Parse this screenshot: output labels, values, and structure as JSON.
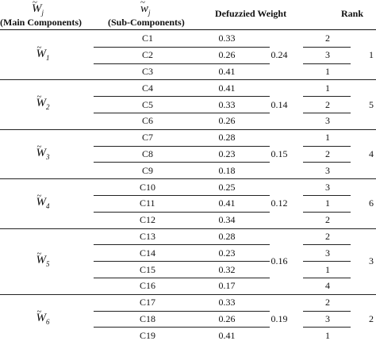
{
  "headers": {
    "main_symbol": "W",
    "main_sub": "j",
    "main_label": "(Main Components)",
    "sub_symbol": "w",
    "sub_sub": "j",
    "sub_label": "(Sub-Components)",
    "weight": "Defuzzied Weight",
    "rank": "Rank"
  },
  "groups": [
    {
      "main": "W",
      "index": "1",
      "main_weight": "0.24",
      "main_rank": "1",
      "rows": [
        {
          "sub": "C1",
          "weight": "0.33",
          "rank": "2"
        },
        {
          "sub": "C2",
          "weight": "0.26",
          "rank": "3"
        },
        {
          "sub": "C3",
          "weight": "0.41",
          "rank": "1"
        }
      ]
    },
    {
      "main": "W",
      "index": "2",
      "main_weight": "0.14",
      "main_rank": "5",
      "rows": [
        {
          "sub": "C4",
          "weight": "0.41",
          "rank": "1"
        },
        {
          "sub": "C5",
          "weight": "0.33",
          "rank": "2"
        },
        {
          "sub": "C6",
          "weight": "0.26",
          "rank": "3"
        }
      ]
    },
    {
      "main": "W",
      "index": "3",
      "main_weight": "0.15",
      "main_rank": "4",
      "rows": [
        {
          "sub": "C7",
          "weight": "0.28",
          "rank": "1"
        },
        {
          "sub": "C8",
          "weight": "0.23",
          "rank": "2"
        },
        {
          "sub": "C9",
          "weight": "0.18",
          "rank": "3"
        }
      ]
    },
    {
      "main": "W",
      "index": "4",
      "main_weight": "0.12",
      "main_rank": "6",
      "rows": [
        {
          "sub": "C10",
          "weight": "0.25",
          "rank": "3"
        },
        {
          "sub": "C11",
          "weight": "0.41",
          "rank": "1"
        },
        {
          "sub": "C12",
          "weight": "0.34",
          "rank": "2"
        }
      ]
    },
    {
      "main": "W",
      "index": "5",
      "main_weight": "0.16",
      "main_rank": "3",
      "rows": [
        {
          "sub": "C13",
          "weight": "0.28",
          "rank": "2"
        },
        {
          "sub": "C14",
          "weight": "0.23",
          "rank": "3"
        },
        {
          "sub": "C15",
          "weight": "0.32",
          "rank": "1"
        },
        {
          "sub": "C16",
          "weight": "0.17",
          "rank": "4"
        }
      ]
    },
    {
      "main": "W",
      "index": "6",
      "main_weight": "0.19",
      "main_rank": "2",
      "rows": [
        {
          "sub": "C17",
          "weight": "0.33",
          "rank": "2"
        },
        {
          "sub": "C18",
          "weight": "0.26",
          "rank": "3"
        },
        {
          "sub": "C19",
          "weight": "0.41",
          "rank": "1"
        }
      ]
    }
  ]
}
